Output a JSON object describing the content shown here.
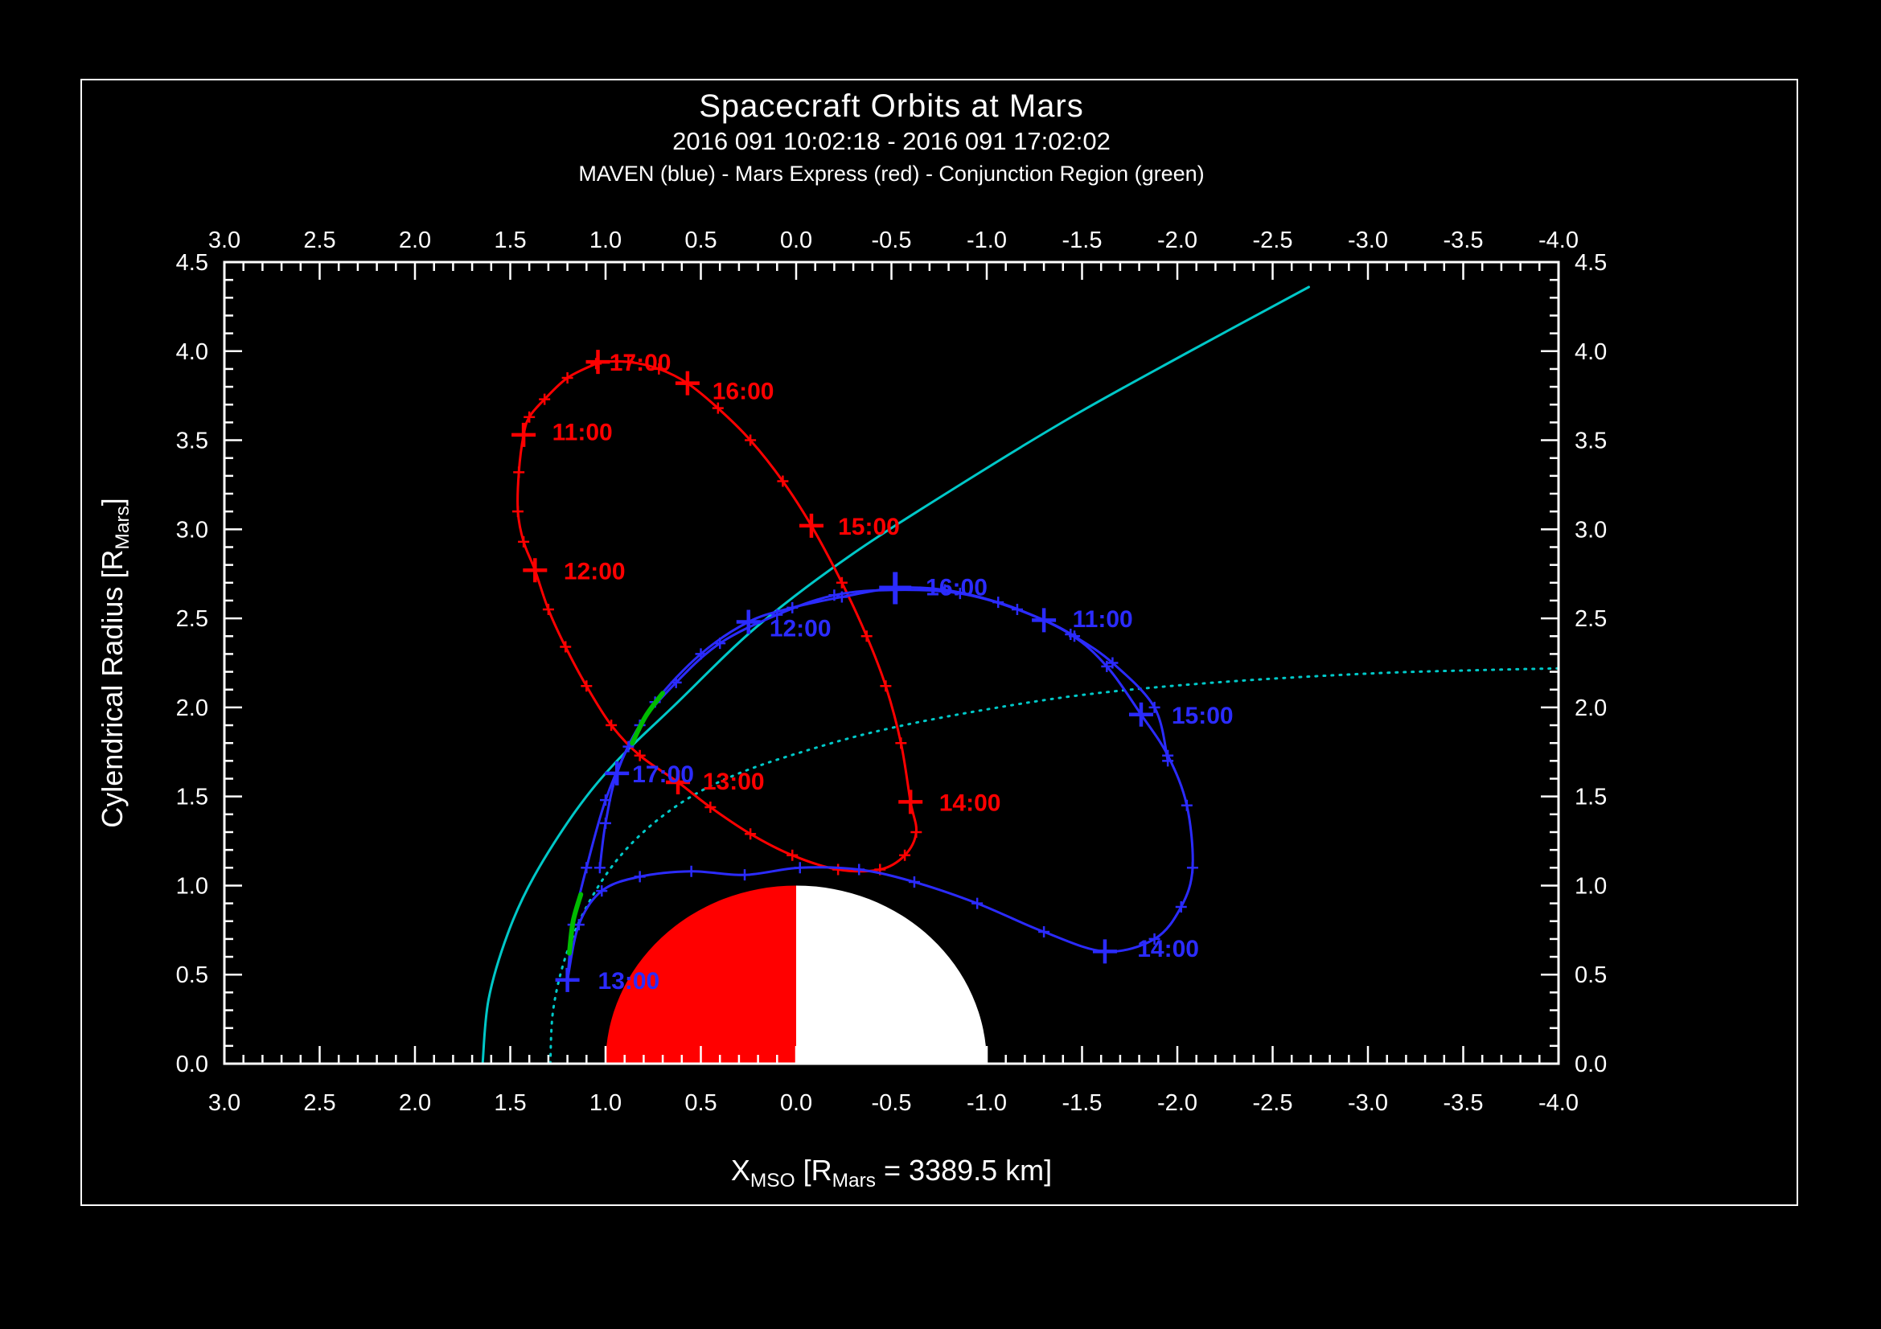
{
  "figure": {
    "title": "Spacecraft Orbits at Mars",
    "subtitle": "2016 091 10:02:18 - 2016 091 17:02:02",
    "legend": "MAVEN (blue) - Mars Express (red) - Conjunction Region (green)"
  },
  "chart_data": {
    "type": "line",
    "title": "Spacecraft Orbits at Mars",
    "subtitle": "2016 091 10:02:18 - 2016 091 17:02:02",
    "legend_line": "MAVEN (blue) - Mars Express (red) - Conjunction Region (green)",
    "background": "#000000",
    "frame_color": "#ffffff",
    "grid": false,
    "xlim": [
      3.0,
      -4.0
    ],
    "ylim": [
      0.0,
      4.5
    ],
    "x_tick_values": [
      3.0,
      2.5,
      2.0,
      1.5,
      1.0,
      0.5,
      0.0,
      -0.5,
      -1.0,
      -1.5,
      -2.0,
      -2.5,
      -3.0,
      -3.5,
      -4.0
    ],
    "x_tick_labels": [
      "3.0",
      "2.5",
      "2.0",
      "1.5",
      "1.0",
      "0.5",
      "0.0",
      "-0.5",
      "-1.0",
      "-1.5",
      "-2.0",
      "-2.5",
      "-3.0",
      "-3.5",
      "-4.0"
    ],
    "y_tick_values": [
      0.0,
      0.5,
      1.0,
      1.5,
      2.0,
      2.5,
      3.0,
      3.5,
      4.0,
      4.5
    ],
    "y_tick_labels": [
      "0.0",
      "0.5",
      "1.0",
      "1.5",
      "2.0",
      "2.5",
      "3.0",
      "3.5",
      "4.0",
      "4.5"
    ],
    "minor_tick_step": 0.1,
    "xlabel_parts": [
      {
        "t": "X",
        "sub": false
      },
      {
        "t": "MSO",
        "sub": true
      },
      {
        "t": " [R",
        "sub": false
      },
      {
        "t": "Mars",
        "sub": true
      },
      {
        "t": " = 3389.5 km]",
        "sub": false
      }
    ],
    "ylabel_parts": [
      {
        "t": "Cylendrical Radius [R",
        "sub": false
      },
      {
        "t": "Mars",
        "sub": true
      },
      {
        "t": "]",
        "sub": false
      }
    ],
    "mars": {
      "radius": 1.0,
      "dayside_color": "#ff0000",
      "nightside_color": "#ffffff"
    },
    "series": [
      {
        "name": "boundary-solid",
        "label": "bow-shock-boundary",
        "color": "#00c8c8",
        "width": 3,
        "dash": null,
        "vertex_marks": false,
        "paths": [
          [
            [
              1.645,
              0.0
            ],
            [
              1.614,
              0.36
            ],
            [
              1.513,
              0.73
            ],
            [
              1.376,
              1.05
            ],
            [
              1.156,
              1.42
            ],
            [
              0.94,
              1.7
            ],
            [
              0.64,
              2.01
            ],
            [
              0.21,
              2.45
            ],
            [
              -0.28,
              2.85
            ],
            [
              -0.89,
              3.27
            ],
            [
              -1.46,
              3.64
            ],
            [
              -2.05,
              3.99
            ],
            [
              -2.69,
              4.36
            ]
          ]
        ],
        "hours": []
      },
      {
        "name": "boundary-dotted",
        "label": "pileup-boundary",
        "color": "#00c8c8",
        "width": 3,
        "dash": "2 8",
        "vertex_marks": false,
        "paths": [
          [
            [
              1.29,
              0.0
            ],
            [
              1.275,
              0.3
            ],
            [
              1.21,
              0.6
            ],
            [
              1.1,
              0.88
            ],
            [
              0.95,
              1.13
            ],
            [
              0.77,
              1.33
            ],
            [
              0.55,
              1.5
            ],
            [
              0.3,
              1.63
            ],
            [
              0.0,
              1.74
            ],
            [
              -0.4,
              1.86
            ],
            [
              -0.9,
              1.97
            ],
            [
              -1.5,
              2.07
            ],
            [
              -2.2,
              2.14
            ],
            [
              -3.0,
              2.19
            ],
            [
              -3.6,
              2.21
            ],
            [
              -4.05,
              2.22
            ]
          ]
        ],
        "hours": []
      },
      {
        "name": "mars-express-orbit",
        "label": "Mars Express",
        "color": "#ff0000",
        "width": 3,
        "dash": null,
        "vertex_marks": true,
        "paths": [
          [
            [
              1.05,
              3.93
            ],
            [
              1.2,
              3.85
            ],
            [
              1.32,
              3.73
            ],
            [
              1.4,
              3.63
            ],
            [
              1.43,
              3.53
            ],
            [
              1.455,
              3.32
            ],
            [
              1.46,
              3.1
            ],
            [
              1.43,
              2.93
            ],
            [
              1.37,
              2.77
            ],
            [
              1.3,
              2.55
            ],
            [
              1.21,
              2.34
            ],
            [
              1.1,
              2.12
            ],
            [
              0.97,
              1.9
            ],
            [
              0.82,
              1.73
            ],
            [
              0.62,
              1.58
            ],
            [
              0.45,
              1.44
            ],
            [
              0.24,
              1.29
            ],
            [
              0.02,
              1.17
            ],
            [
              -0.22,
              1.09
            ],
            [
              -0.44,
              1.09
            ],
            [
              -0.57,
              1.17
            ],
            [
              -0.63,
              1.3
            ],
            [
              -0.6,
              1.47
            ],
            [
              -0.55,
              1.8
            ],
            [
              -0.47,
              2.12
            ],
            [
              -0.37,
              2.4
            ],
            [
              -0.24,
              2.7
            ],
            [
              -0.08,
              3.02
            ],
            [
              0.07,
              3.27
            ],
            [
              0.24,
              3.5
            ],
            [
              0.41,
              3.68
            ],
            [
              0.57,
              3.82
            ],
            [
              0.72,
              3.9
            ],
            [
              0.88,
              3.94
            ],
            [
              1.04,
              3.94
            ]
          ]
        ],
        "hours": [
          {
            "t": "11:00",
            "mx": 1.43,
            "my": 3.53,
            "lx": 1.28,
            "ly": 3.5
          },
          {
            "t": "12:00",
            "mx": 1.37,
            "my": 2.77,
            "lx": 1.22,
            "ly": 2.72
          },
          {
            "t": "13:00",
            "mx": 0.62,
            "my": 1.58,
            "lx": 0.49,
            "ly": 1.54
          },
          {
            "t": "14:00",
            "mx": -0.6,
            "my": 1.47,
            "lx": -0.75,
            "ly": 1.42
          },
          {
            "t": "15:00",
            "mx": -0.08,
            "my": 3.02,
            "lx": -0.22,
            "ly": 2.97
          },
          {
            "t": "16:00",
            "mx": 0.57,
            "my": 3.82,
            "lx": 0.44,
            "ly": 3.73
          },
          {
            "t": "17:00",
            "mx": 1.04,
            "my": 3.94,
            "lx": 0.98,
            "ly": 3.89
          }
        ]
      },
      {
        "name": "maven-orbit",
        "label": "MAVEN",
        "color": "#2b2bff",
        "width": 3,
        "dash": null,
        "vertex_marks": true,
        "paths": [
          [
            [
              -1.95,
              1.7
            ],
            [
              -1.88,
              2.0
            ],
            [
              -1.66,
              2.25
            ],
            [
              -1.46,
              2.4
            ],
            [
              -1.3,
              2.49
            ],
            [
              -1.06,
              2.59
            ],
            [
              -0.78,
              2.66
            ],
            [
              -0.52,
              2.67
            ],
            [
              -0.24,
              2.62
            ],
            [
              0.02,
              2.56
            ],
            [
              0.25,
              2.48
            ],
            [
              0.5,
              2.3
            ],
            [
              0.74,
              2.03
            ],
            [
              0.88,
              1.78
            ],
            [
              1.0,
              1.48
            ],
            [
              1.1,
              1.1
            ],
            [
              1.17,
              0.78
            ],
            [
              1.2,
              0.47
            ]
          ],
          [
            [
              1.2,
              0.47
            ],
            [
              1.14,
              0.78
            ],
            [
              1.02,
              0.97
            ],
            [
              0.82,
              1.05
            ],
            [
              0.55,
              1.08
            ],
            [
              0.27,
              1.06
            ],
            [
              -0.02,
              1.1
            ],
            [
              -0.33,
              1.09
            ],
            [
              -0.62,
              1.02
            ],
            [
              -0.95,
              0.9
            ],
            [
              -1.3,
              0.74
            ],
            [
              -1.62,
              0.63
            ],
            [
              -1.88,
              0.7
            ],
            [
              -2.02,
              0.88
            ],
            [
              -2.08,
              1.1
            ],
            [
              -2.05,
              1.45
            ],
            [
              -1.95,
              1.73
            ],
            [
              -1.81,
              1.96
            ],
            [
              -1.63,
              2.23
            ],
            [
              -1.44,
              2.41
            ],
            [
              -1.16,
              2.55
            ],
            [
              -0.86,
              2.64
            ],
            [
              -0.52,
              2.66
            ],
            [
              -0.2,
              2.63
            ],
            [
              0.1,
              2.52
            ],
            [
              0.4,
              2.36
            ],
            [
              0.63,
              2.14
            ],
            [
              0.82,
              1.9
            ],
            [
              0.94,
              1.63
            ],
            [
              1.0,
              1.35
            ],
            [
              1.03,
              1.1
            ]
          ]
        ],
        "hours": [
          {
            "t": "11:00",
            "mx": -1.3,
            "my": 2.49,
            "lx": -1.45,
            "ly": 2.45
          },
          {
            "t": "12:00",
            "mx": 0.25,
            "my": 2.48,
            "lx": 0.14,
            "ly": 2.4
          },
          {
            "t": "13:00",
            "mx": 1.2,
            "my": 0.47,
            "lx": 1.04,
            "ly": 0.42
          },
          {
            "t": "14:00",
            "mx": -1.62,
            "my": 0.63,
            "lx": -1.79,
            "ly": 0.6
          },
          {
            "t": "15:00",
            "mx": -1.81,
            "my": 1.96,
            "lx": -1.97,
            "ly": 1.91
          },
          {
            "t": "16:00",
            "mx": -0.52,
            "my": 2.67,
            "lx": -0.68,
            "ly": 2.63,
            "big": true
          },
          {
            "t": "17:00",
            "mx": 0.94,
            "my": 1.63,
            "lx": 0.86,
            "ly": 1.58
          }
        ]
      },
      {
        "name": "conjunction-region",
        "label": "Conjunction Region",
        "color": "#00bb00",
        "width": 6,
        "dash": null,
        "vertex_marks": false,
        "paths": [
          [
            [
              0.7,
              2.08
            ],
            [
              0.79,
              1.95
            ],
            [
              0.86,
              1.8
            ]
          ],
          [
            [
              1.13,
              0.95
            ],
            [
              1.17,
              0.8
            ],
            [
              1.19,
              0.62
            ]
          ]
        ],
        "hours": []
      }
    ]
  }
}
